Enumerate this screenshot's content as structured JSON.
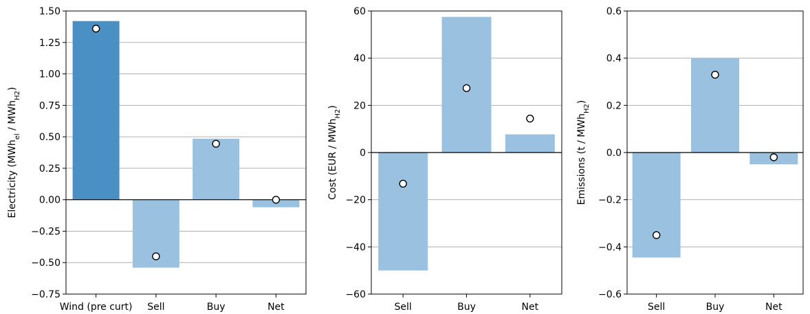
{
  "colors": {
    "wind_bar": "#4a90c4",
    "bar": "#9ac2e0",
    "grid": "#b0b0b0",
    "axis": "#000000",
    "marker_face": "#ffffff",
    "marker_edge": "#000000"
  },
  "chart_data": [
    {
      "type": "bar",
      "title": "",
      "xlabel": "",
      "ylabel": {
        "prefix": "Electricity (MWh",
        "sub1": "el",
        "mid": " / MWh",
        "sub2": "H2",
        "suffix": ")"
      },
      "ylim": [
        -0.75,
        1.5
      ],
      "yticks": [
        -0.75,
        -0.5,
        -0.25,
        0.0,
        0.25,
        0.5,
        0.75,
        1.0,
        1.25,
        1.5
      ],
      "ytick_labels": [
        "−0.75",
        "−0.50",
        "−0.25",
        "0.00",
        "0.25",
        "0.50",
        "0.75",
        "1.00",
        "1.25",
        "1.50"
      ],
      "categories": [
        "Wind (pre curt)",
        "Sell",
        "Buy",
        "Net"
      ],
      "values": [
        1.42,
        -0.54,
        0.485,
        -0.06
      ],
      "markers": [
        1.36,
        -0.45,
        0.445,
        0.0
      ],
      "bar_colors": [
        "wind_bar",
        "bar",
        "bar",
        "bar"
      ],
      "grid": "y"
    },
    {
      "type": "bar",
      "title": "",
      "xlabel": "",
      "ylabel": {
        "prefix": "Cost (EUR / MWh",
        "sub1": "",
        "mid": "",
        "sub2": "H2",
        "suffix": ")"
      },
      "ylim": [
        -60,
        60
      ],
      "yticks": [
        -60,
        -40,
        -20,
        0,
        20,
        40,
        60
      ],
      "ytick_labels": [
        "−60",
        "−40",
        "−20",
        "0",
        "20",
        "40",
        "60"
      ],
      "categories": [
        "Sell",
        "Buy",
        "Net"
      ],
      "values": [
        -50,
        57.5,
        7.7
      ],
      "markers": [
        -13.2,
        27.3,
        14.4
      ],
      "bar_colors": [
        "bar",
        "bar",
        "bar"
      ],
      "grid": "y"
    },
    {
      "type": "bar",
      "title": "",
      "xlabel": "",
      "ylabel": {
        "prefix": "Emissions (t / MWh",
        "sub1": "",
        "mid": "",
        "sub2": "H2",
        "suffix": ")"
      },
      "ylim": [
        -0.6,
        0.6
      ],
      "yticks": [
        -0.6,
        -0.4,
        -0.2,
        0.0,
        0.2,
        0.4,
        0.6
      ],
      "ytick_labels": [
        "−0.6",
        "−0.4",
        "−0.2",
        "0.0",
        "0.2",
        "0.4",
        "0.6"
      ],
      "categories": [
        "Sell",
        "Buy",
        "Net"
      ],
      "values": [
        -0.445,
        0.4,
        -0.05
      ],
      "markers": [
        -0.35,
        0.33,
        -0.02
      ],
      "bar_colors": [
        "bar",
        "bar",
        "bar"
      ],
      "grid": "y"
    }
  ]
}
